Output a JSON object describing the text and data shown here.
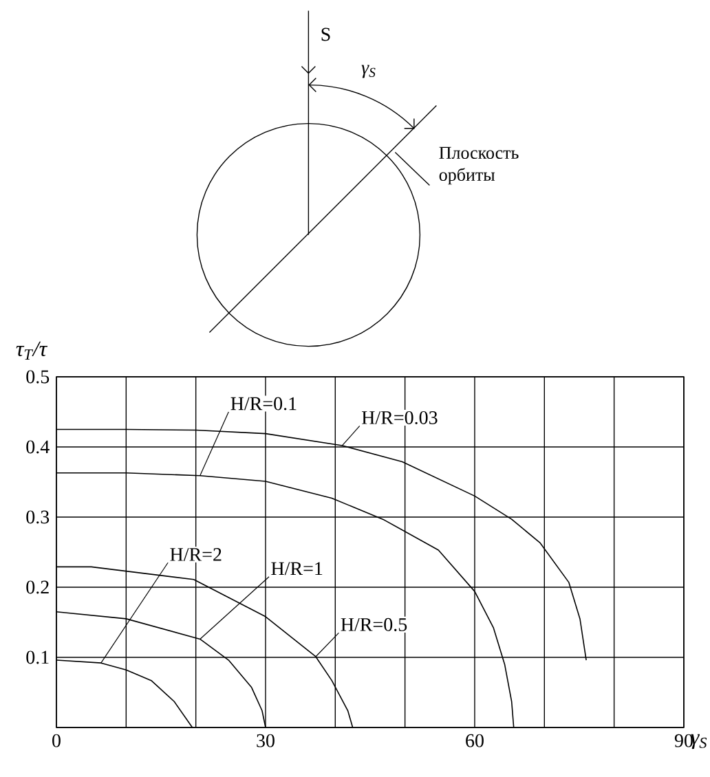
{
  "chart_data": {
    "type": "line",
    "xlabel": "γ$_{S}$",
    "ylabel": "τ$_{T}$/τ",
    "annotations": [
      "S",
      "γ$_{S}$",
      "Плоскость орбиты"
    ],
    "series": [
      {
        "name": "H/R=0.03",
        "color": "#000000",
        "x": [
          0,
          10,
          20,
          30,
          41,
          49.6,
          60,
          65.3,
          69.4,
          73.5,
          75.1,
          76
        ],
        "values": [
          0.425,
          0.425,
          0.424,
          0.419,
          0.402,
          0.379,
          0.33,
          0.297,
          0.263,
          0.207,
          0.155,
          0.096
        ]
      },
      {
        "name": "H/R=0.1",
        "color": "#000000",
        "x": [
          0,
          10,
          20.6,
          30,
          39.5,
          47,
          54.8,
          60,
          62.7,
          64.3,
          65.3,
          65.6
        ],
        "values": [
          0.363,
          0.363,
          0.359,
          0.351,
          0.327,
          0.296,
          0.253,
          0.194,
          0.142,
          0.09,
          0.037,
          0
        ]
      },
      {
        "name": "H/R=0.5",
        "color": "#000000",
        "x": [
          0,
          5,
          19.7,
          30,
          37.2,
          39.5,
          41.8,
          42.5
        ],
        "values": [
          0.229,
          0.229,
          0.211,
          0.158,
          0.101,
          0.067,
          0.024,
          0
        ]
      },
      {
        "name": "H/R=1",
        "color": "#000000",
        "x": [
          0,
          10,
          20.6,
          24.7,
          28,
          29.5,
          30
        ],
        "values": [
          0.165,
          0.155,
          0.126,
          0.096,
          0.057,
          0.024,
          0
        ]
      },
      {
        "name": "H/R=2",
        "color": "#000000",
        "x": [
          0,
          6.4,
          10,
          13.6,
          16.9,
          19.5
        ],
        "values": [
          0.096,
          0.092,
          0.082,
          0.067,
          0.037,
          0
        ]
      }
    ],
    "xlim": [
      0,
      90
    ],
    "ylim": [
      0,
      0.5
    ],
    "xticks": [
      0,
      {
        "value": 10,
        "label": null
      },
      {
        "value": 20,
        "label": null
      },
      30,
      {
        "value": 40,
        "label": null
      },
      {
        "value": 50,
        "label": null
      },
      60,
      {
        "value": 70,
        "label": null
      },
      {
        "value": 80,
        "label": null
      },
      90
    ],
    "yticks": [
      {
        "value": 0,
        "label": null
      },
      0.1,
      0.2,
      0.3,
      0.4,
      0.5
    ],
    "grid": true,
    "line_style": "solid"
  }
}
